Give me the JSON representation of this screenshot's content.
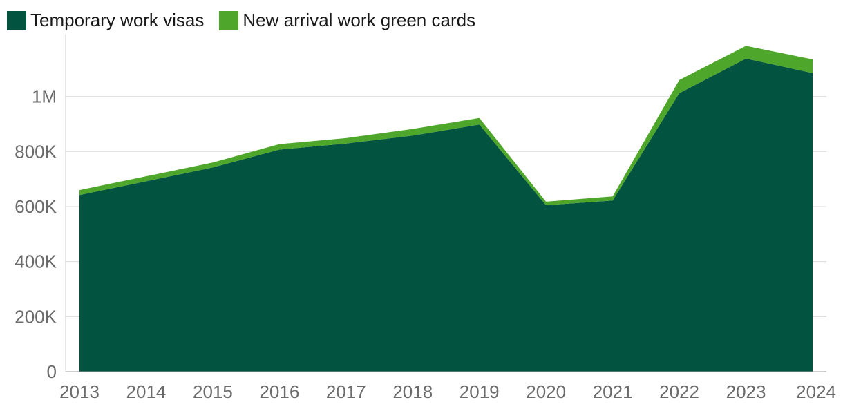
{
  "chart_data": {
    "type": "area",
    "stacked": true,
    "title": "",
    "xlabel": "",
    "ylabel": "",
    "categories": [
      "2013",
      "2014",
      "2015",
      "2016",
      "2017",
      "2018",
      "2019",
      "2020",
      "2021",
      "2022",
      "2023",
      "2024"
    ],
    "series": [
      {
        "name": "Temporary work visas",
        "color": "#02533f",
        "values": [
          642000,
          692000,
          742000,
          807000,
          829000,
          858000,
          898000,
          605000,
          622000,
          1012000,
          1138000,
          1085000
        ]
      },
      {
        "name": "New arrival work green cards",
        "color": "#4ea72a",
        "values": [
          18000,
          18000,
          18000,
          20000,
          20000,
          24000,
          24000,
          13000,
          15000,
          48000,
          46000,
          50000
        ]
      }
    ],
    "ylim": [
      0,
      1200000
    ],
    "yticks": [
      0,
      200000,
      400000,
      600000,
      800000,
      1000000
    ],
    "ytick_labels": [
      "0",
      "200K",
      "400K",
      "600K",
      "800K",
      "1M"
    ],
    "grid": true,
    "legend_position": "top-left"
  }
}
